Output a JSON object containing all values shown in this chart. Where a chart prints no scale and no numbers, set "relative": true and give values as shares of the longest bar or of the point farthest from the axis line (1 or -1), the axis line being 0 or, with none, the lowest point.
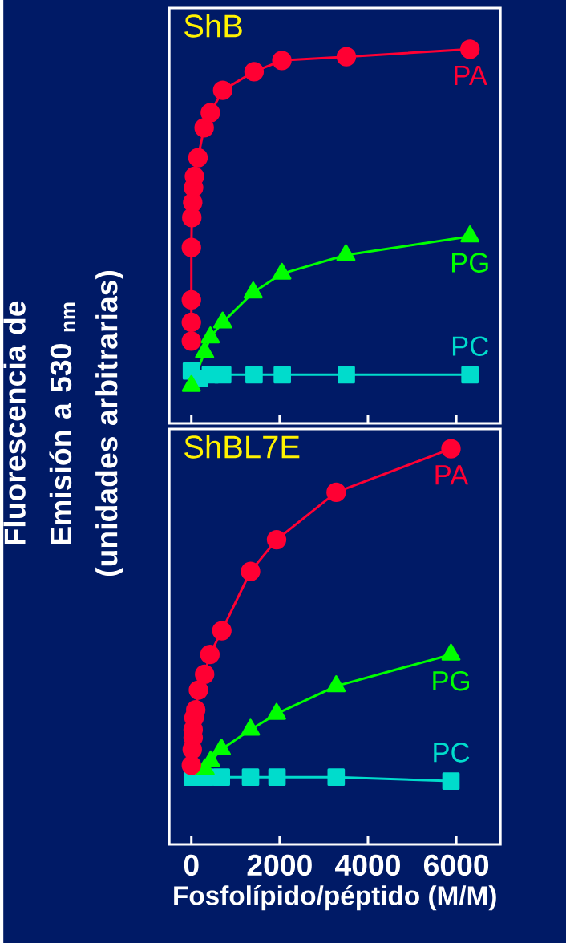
{
  "chart_data": [
    {
      "type": "line",
      "title": "ShB",
      "ylabel": "Fluorescencia de Emisión a 530 $_{nm}$ (unidades arbitrarias)",
      "relative": true,
      "xlim": [
        -500,
        7000
      ],
      "xticks": [
        0,
        2000,
        4000,
        6000
      ],
      "tick_labels": false,
      "series": [
        {
          "name": "PA",
          "color": "#ff0033",
          "marker": "circle",
          "x": [
            0,
            0,
            0,
            0,
            10,
            30,
            50,
            70,
            150,
            290,
            430,
            710,
            1420,
            2050,
            3510,
            6310
          ],
          "values": [
            0.22,
            0.27,
            0.33,
            0.47,
            0.55,
            0.59,
            0.63,
            0.66,
            0.71,
            0.79,
            0.83,
            0.89,
            0.94,
            0.97,
            0.98,
            1.0
          ]
        },
        {
          "name": "PG",
          "color": "#00ff00",
          "marker": "triangle",
          "x": [
            0,
            300,
            430,
            710,
            1400,
            2050,
            3500,
            6310
          ],
          "values": [
            0.1,
            0.19,
            0.23,
            0.27,
            0.35,
            0.4,
            0.45,
            0.5
          ]
        },
        {
          "name": "PC",
          "color": "#00dccc",
          "marker": "square",
          "x": [
            0,
            180,
            430,
            710,
            1420,
            2060,
            3510,
            6310
          ],
          "values": [
            0.14,
            0.12,
            0.13,
            0.13,
            0.13,
            0.13,
            0.13,
            0.13
          ]
        }
      ]
    },
    {
      "type": "line",
      "title": "ShBL7E",
      "xlabel": "Fosfolípido/péptido (M/M)",
      "relative": true,
      "xlim": [
        -500,
        7000
      ],
      "xticks": [
        0,
        2000,
        4000,
        6000
      ],
      "tick_labels": "x",
      "series": [
        {
          "name": "PA",
          "color": "#ff0033",
          "marker": "circle",
          "x": [
            0,
            20,
            40,
            40,
            60,
            100,
            160,
            300,
            420,
            690,
            1340,
            1930,
            3280,
            5880
          ],
          "values": [
            0.2,
            0.24,
            0.27,
            0.29,
            0.32,
            0.34,
            0.39,
            0.43,
            0.48,
            0.54,
            0.69,
            0.77,
            0.89,
            1.0
          ]
        },
        {
          "name": "PG",
          "color": "#00ff00",
          "marker": "triangle",
          "x": [
            310,
            440,
            680,
            1340,
            1930,
            3280,
            5880
          ],
          "values": [
            0.19,
            0.21,
            0.24,
            0.29,
            0.33,
            0.4,
            0.48
          ]
        },
        {
          "name": "PC",
          "color": "#00dccc",
          "marker": "square",
          "x": [
            20,
            310,
            680,
            1340,
            1940,
            3280,
            5880
          ],
          "values": [
            0.17,
            0.17,
            0.17,
            0.17,
            0.17,
            0.17,
            0.16
          ]
        }
      ]
    }
  ]
}
